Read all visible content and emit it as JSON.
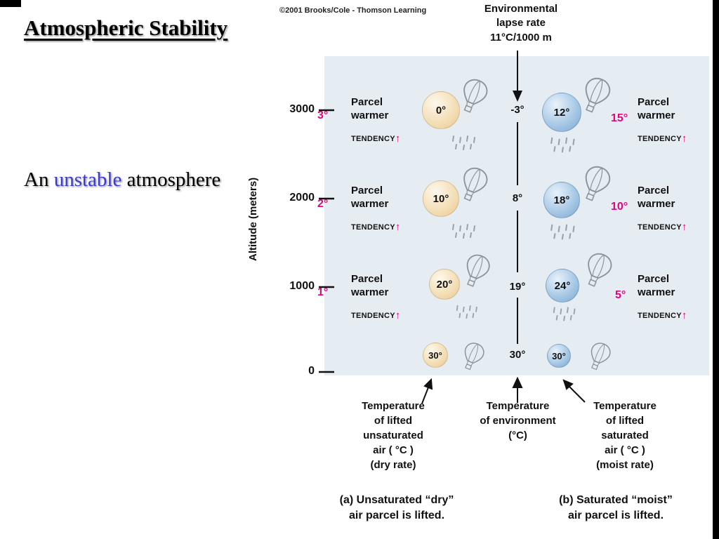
{
  "slide": {
    "title": "Atmospheric Stability",
    "subtitle": {
      "prefix": "An ",
      "highlight": "unstable",
      "suffix": " atmosphere"
    }
  },
  "figure": {
    "credit": "©2001 Brooks/Cole - Thomson Learning",
    "lapse_rate_label": "Environmental\nlapse rate\n11°C/1000 m",
    "y_axis": {
      "label": "Altitude (meters)",
      "ticks": [
        "3000",
        "2000",
        "1000",
        "0"
      ]
    },
    "parcel_block": {
      "label": "Parcel\nwarmer",
      "tendency": "TENDENCY",
      "arrow": "↑"
    },
    "rows": [
      {
        "altitude": "3000",
        "left_diff": "3°",
        "dry": "0°",
        "env": "-3°",
        "moist": "12°",
        "right_diff": "15°"
      },
      {
        "altitude": "2000",
        "left_diff": "2°",
        "dry": "10°",
        "env": "8°",
        "moist": "18°",
        "right_diff": "10°"
      },
      {
        "altitude": "1000",
        "left_diff": "1°",
        "dry": "20°",
        "env": "19°",
        "moist": "24°",
        "right_diff": "5°"
      },
      {
        "altitude": "0",
        "dry": "30°",
        "env": "30°",
        "moist": "30°"
      }
    ],
    "footnotes": {
      "dry": "Temperature\nof lifted\nunsaturated\nair ( °C )\n(dry rate)",
      "env": "Temperature\nof environment\n(°C)",
      "moist": "Temperature\nof lifted\nsaturated\nair ( °C )\n(moist rate)"
    },
    "captions": {
      "a": "(a) Unsaturated “dry”\nair parcel is lifted.",
      "b": "(b) Saturated “moist”\nair parcel is lifted."
    }
  },
  "colors": {
    "highlight_text": "#3b3bd1",
    "pink": "#e5007d",
    "panel_bg": "#e6edf2",
    "dry_parcel": "#f2dcb3",
    "moist_parcel": "#9dc1e0"
  }
}
